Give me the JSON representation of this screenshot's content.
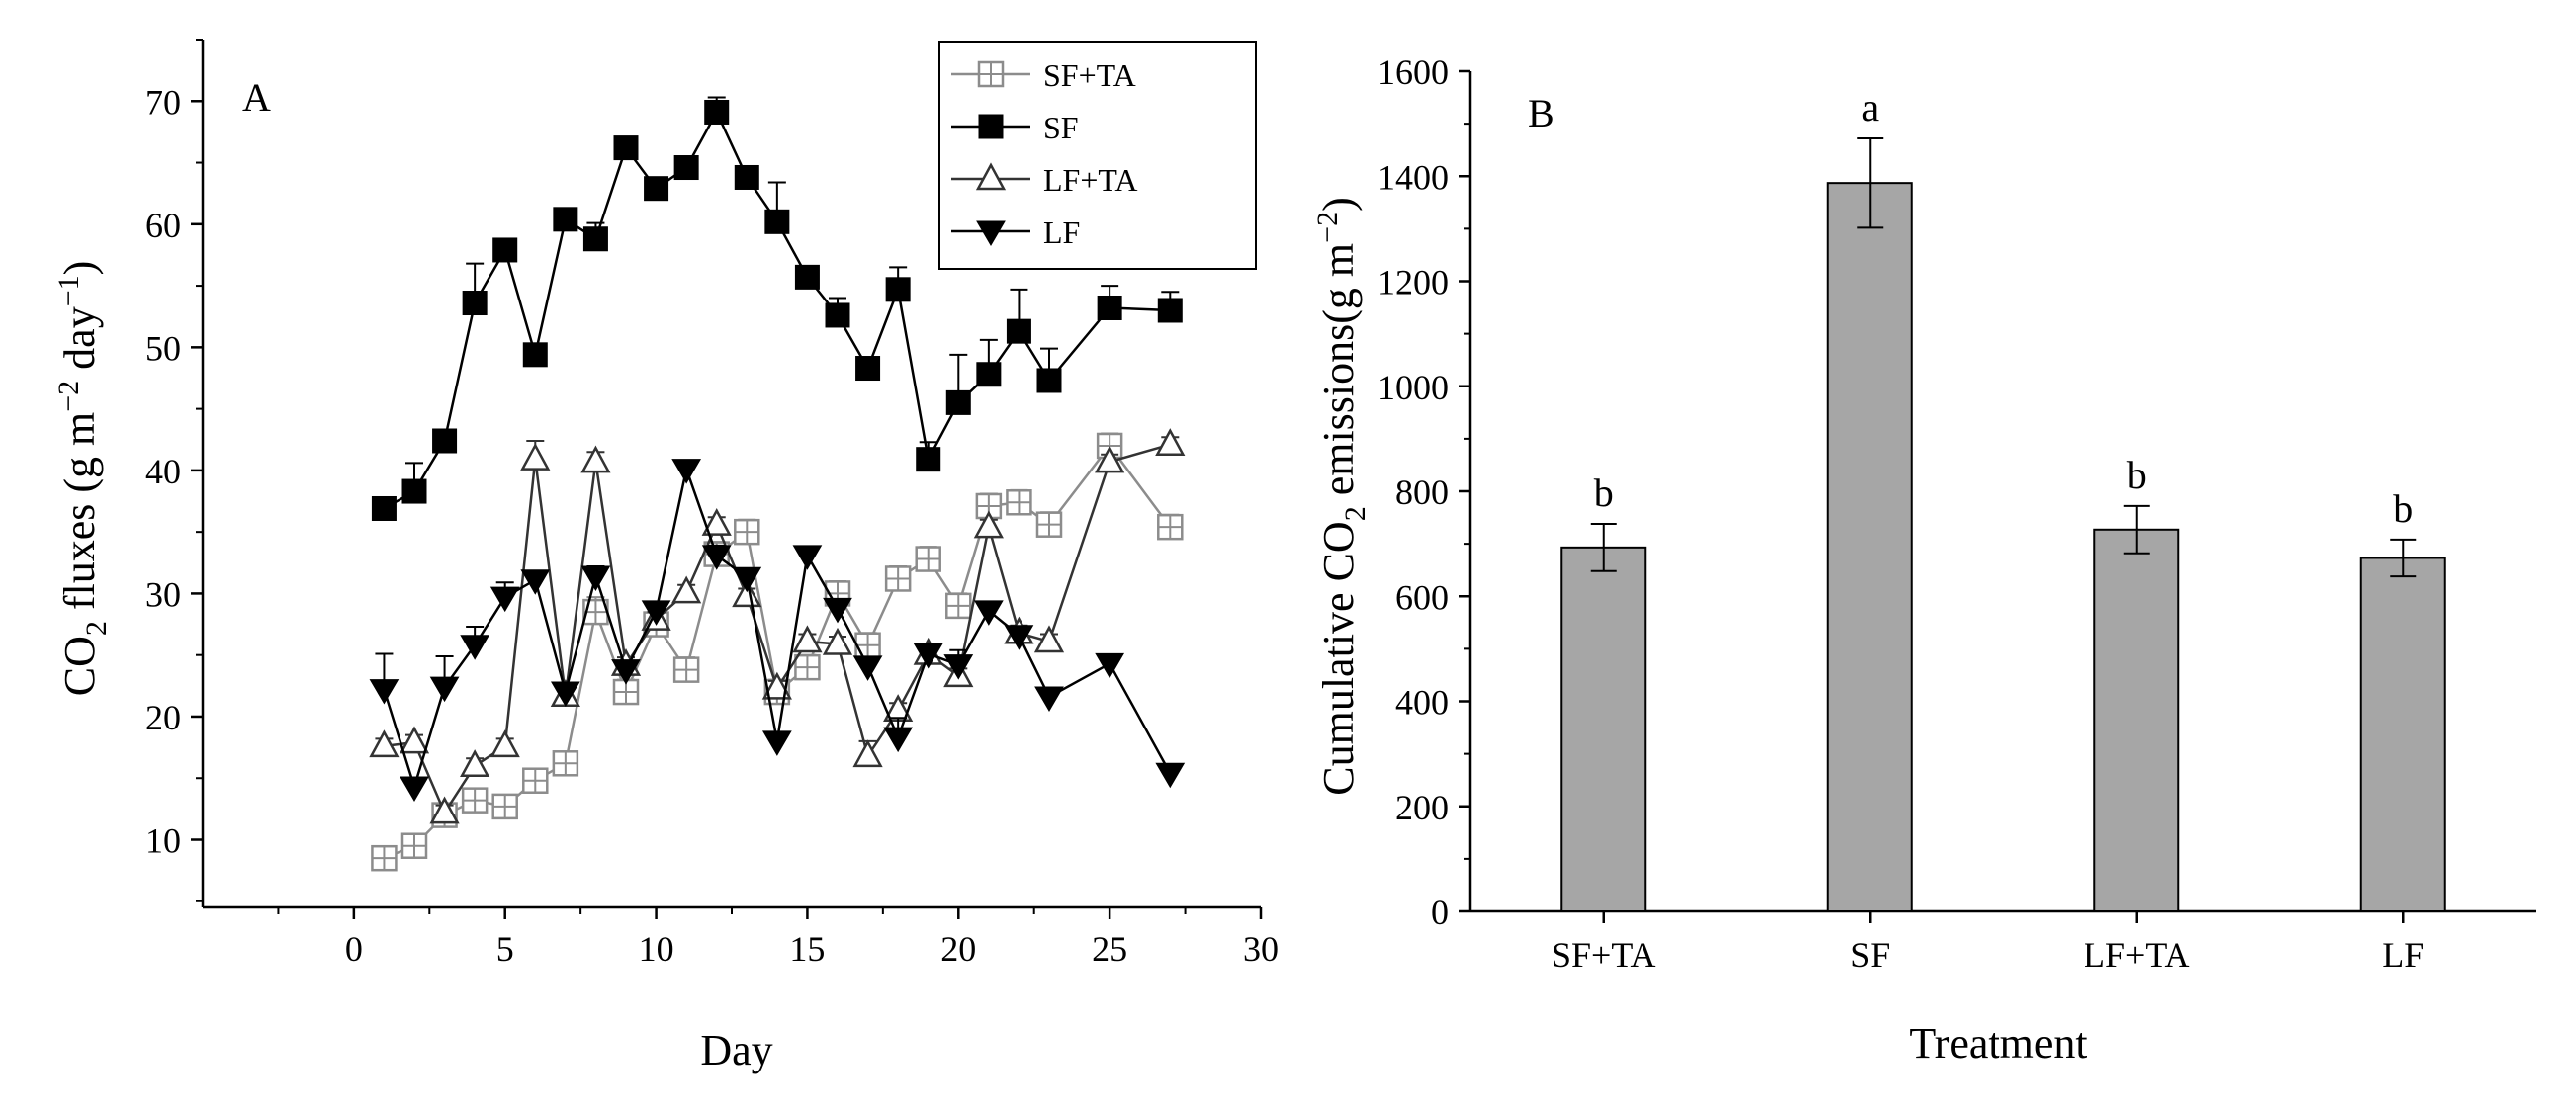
{
  "chart_data": [
    {
      "panel": "A",
      "type": "line",
      "xlabel": "Day",
      "ylabel": "CO2 fluxes (g m−2 day−1)",
      "ylabel_parts": {
        "pre": "CO",
        "sub": "2",
        "mid": " fluxes (g m",
        "sup1": "−2",
        "mid2": " day",
        "sup2": "−1",
        "post": ")"
      },
      "xlim": [
        -5,
        30
      ],
      "ylim": [
        4.5,
        75
      ],
      "x_ticks": [
        0,
        5,
        10,
        15,
        20,
        25,
        30
      ],
      "y_ticks": [
        10,
        20,
        30,
        40,
        50,
        60,
        70
      ],
      "legend_position": "top-right",
      "series": [
        {
          "name": "SF+TA",
          "marker": "square-open",
          "color": "#8c8c8c",
          "x": [
            1,
            2,
            3,
            4,
            5,
            6,
            7,
            8,
            9,
            10,
            11,
            12,
            13,
            14,
            15,
            16,
            17,
            18,
            19,
            20,
            21,
            22,
            23,
            25,
            27
          ],
          "y": [
            8.5,
            9.5,
            12,
            13.2,
            12.7,
            14.8,
            16.2,
            28.5,
            22,
            27.5,
            23.8,
            33.2,
            35,
            22,
            24,
            30,
            25.8,
            31.2,
            32.8,
            29,
            37.1,
            37.4,
            35.6,
            42,
            35.4
          ],
          "err": [
            0.8,
            0.8,
            0.8,
            0.8,
            0.8,
            0.8,
            0.8,
            1.2,
            1.0,
            1.0,
            1.0,
            1.0,
            1.0,
            1.0,
            1.0,
            1.0,
            1.0,
            1.0,
            1.0,
            1.0,
            1.0,
            1.0,
            1.0,
            1.0,
            1.0
          ]
        },
        {
          "name": "SF",
          "marker": "square-filled",
          "color": "#000000",
          "x": [
            1,
            2,
            3,
            4,
            5,
            6,
            7,
            8,
            9,
            10,
            11,
            12,
            13,
            14,
            15,
            16,
            17,
            18,
            19,
            20,
            21,
            22,
            23,
            25,
            27
          ],
          "y": [
            36.9,
            38.3,
            42.4,
            53.6,
            57.9,
            49.4,
            60.4,
            58.8,
            66.2,
            62.9,
            64.6,
            69.1,
            63.8,
            60.2,
            55.7,
            52.6,
            48.3,
            54.7,
            40.9,
            45.5,
            47.8,
            51.3,
            47.3,
            53.2,
            53.0
          ],
          "err": [
            0.5,
            2.3,
            0.5,
            3.2,
            0.8,
            0.6,
            0.6,
            1.3,
            0.5,
            0.5,
            0.6,
            1.2,
            0.5,
            3.2,
            0.6,
            1.4,
            0.6,
            1.8,
            1.4,
            3.9,
            2.8,
            3.4,
            2.6,
            1.8,
            1.5
          ]
        },
        {
          "name": "LF+TA",
          "marker": "triangle-open",
          "color": "#333333",
          "x": [
            1,
            2,
            3,
            4,
            5,
            6,
            7,
            8,
            9,
            10,
            11,
            12,
            13,
            14,
            15,
            16,
            17,
            18,
            19,
            20,
            21,
            22,
            23,
            25,
            27
          ],
          "y": [
            17.6,
            17.9,
            12.2,
            16,
            17.6,
            40.9,
            21.7,
            40.7,
            24.2,
            27.9,
            30.1,
            35.6,
            29.8,
            22.3,
            26.1,
            25.9,
            16.8,
            20.5,
            25.1,
            23.3,
            35.4,
            26.8,
            26.1,
            40.7,
            42.1
          ],
          "err": [
            0.6,
            0.6,
            0.6,
            0.6,
            0.6,
            1.5,
            0.6,
            0.8,
            0.6,
            0.6,
            0.6,
            0.6,
            0.6,
            0.6,
            0.6,
            0.6,
            1.2,
            0.6,
            0.6,
            0.6,
            0.6,
            0.6,
            0.6,
            0.6,
            0.6
          ]
        },
        {
          "name": "LF",
          "marker": "triangle-down-filled",
          "color": "#000000",
          "x": [
            1,
            2,
            3,
            4,
            5,
            6,
            7,
            8,
            9,
            10,
            11,
            12,
            13,
            14,
            15,
            16,
            17,
            18,
            19,
            20,
            21,
            22,
            23,
            25,
            27
          ],
          "y": [
            22.2,
            14.3,
            22.4,
            25.8,
            29.7,
            31.1,
            22,
            31.4,
            23.8,
            28.6,
            40.1,
            33.1,
            31.3,
            18,
            33.1,
            28.8,
            24.1,
            18.3,
            25.1,
            24.2,
            28.6,
            26.6,
            21.6,
            24.3,
            15.4
          ],
          "err": [
            2.9,
            0.6,
            2.5,
            1.5,
            1.2,
            0.6,
            0.6,
            0.8,
            0.6,
            0.6,
            0.6,
            0.8,
            0.6,
            0.6,
            0.6,
            0.6,
            0.6,
            1.6,
            0.6,
            1.2,
            0.6,
            0.6,
            0.6,
            0.6,
            0.6
          ]
        }
      ]
    },
    {
      "panel": "B",
      "type": "bar",
      "categories": [
        "SF+TA",
        "SF",
        "LF+TA",
        "LF"
      ],
      "values": [
        693,
        1387,
        727,
        673
      ],
      "errors": [
        45,
        85,
        45,
        35
      ],
      "significance": [
        "b",
        "a",
        "b",
        "b"
      ],
      "xlabel": "Treatment",
      "ylabel": "Cumulative CO2 emissions(g m−2)",
      "ylabel_parts": {
        "pre": "Cumulative CO",
        "sub": "2",
        "mid": " emissions(g m",
        "sup1": "−2",
        "post": ")"
      },
      "ylim": [
        0,
        1600
      ],
      "y_ticks": [
        0,
        200,
        400,
        600,
        800,
        1000,
        1200,
        1400,
        1600
      ],
      "bar_color": "#a6a6a6"
    }
  ]
}
